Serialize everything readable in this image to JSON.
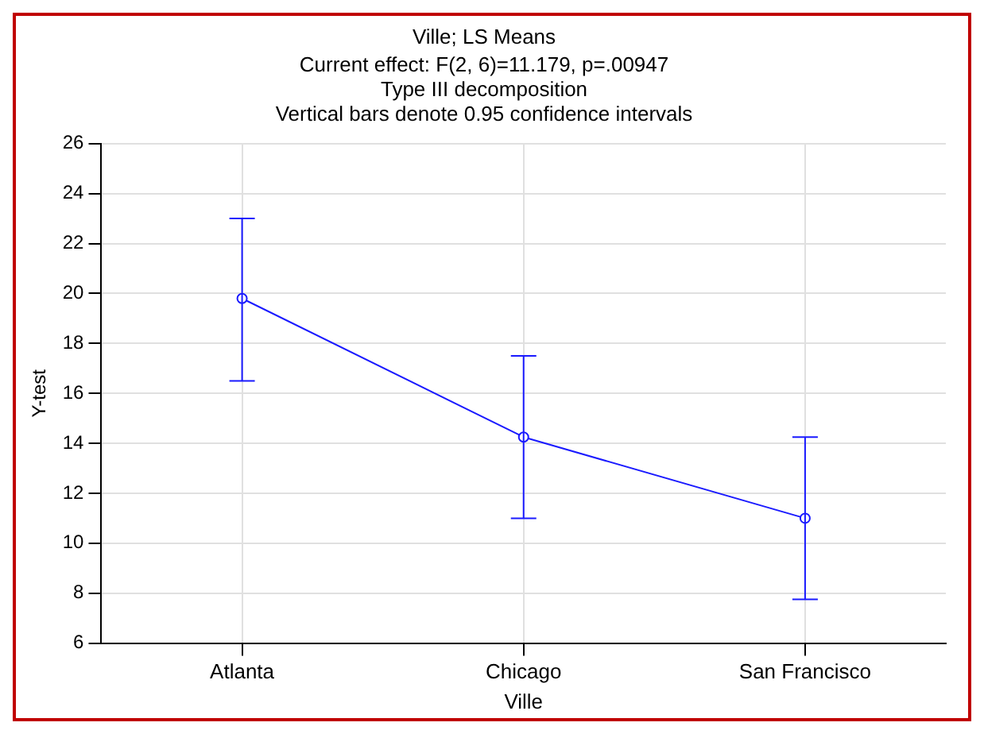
{
  "chart_data": {
    "type": "line",
    "title": "Ville; LS Means",
    "subtitle": "Current effect: F(2, 6)=11.179, p=.00947",
    "annotations": [
      "Type III decomposition",
      "Vertical bars denote 0.95 confidence intervals"
    ],
    "xlabel": "Ville",
    "ylabel": "Y-test",
    "categories": [
      "Atlanta",
      "Chicago",
      "San Francisco"
    ],
    "series": [
      {
        "color": "#1a1aff",
        "values": [
          19.8,
          14.25,
          11.0
        ],
        "errors": [
          [
            16.5,
            23.0
          ],
          [
            11.0,
            17.5
          ],
          [
            7.75,
            14.25
          ]
        ]
      }
    ],
    "ylim": [
      6,
      26
    ],
    "yticks": [
      6,
      8,
      10,
      12,
      14,
      16,
      18,
      20,
      22,
      24,
      26
    ],
    "grid": true,
    "legend": false,
    "marker": "circle",
    "line_style": "solid"
  }
}
